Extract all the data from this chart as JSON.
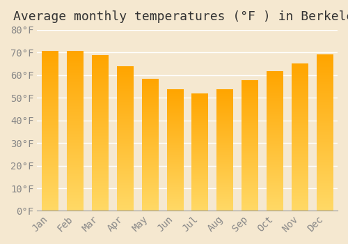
{
  "title": "Average monthly temperatures (°F ) in Berkeley",
  "months": [
    "Jan",
    "Feb",
    "Mar",
    "Apr",
    "May",
    "Jun",
    "Jul",
    "Aug",
    "Sep",
    "Oct",
    "Nov",
    "Dec"
  ],
  "values": [
    70.5,
    70.5,
    68.5,
    63.5,
    58.0,
    53.5,
    51.5,
    53.5,
    57.5,
    61.5,
    65.0,
    69.0
  ],
  "ylim": [
    0,
    80
  ],
  "yticks": [
    0,
    10,
    20,
    30,
    40,
    50,
    60,
    70,
    80
  ],
  "bar_color_top": "#FFA500",
  "bar_color_bottom": "#FFD966",
  "background_color": "#F5E8D0",
  "grid_color": "#FFFFFF",
  "title_fontsize": 13,
  "tick_fontsize": 10
}
